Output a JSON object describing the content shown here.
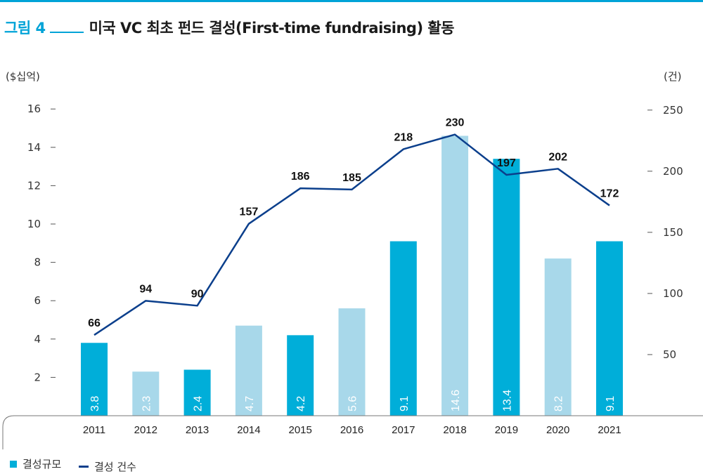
{
  "figure": {
    "number": "그림 4",
    "title": "미국 VC 최초 펀드 결성(First-time fundraising) 활동"
  },
  "legend": {
    "bar_label": "결성규모",
    "line_label": "결성 건수"
  },
  "colors": {
    "accent": "#00a3d7",
    "bar_dark": "#00aed9",
    "bar_light": "#a8d8ea",
    "line": "#0b3f8c"
  },
  "chart_data": {
    "type": "bar+line",
    "categories": [
      "2011",
      "2012",
      "2013",
      "2014",
      "2015",
      "2016",
      "2017",
      "2018",
      "2019",
      "2020",
      "2021"
    ],
    "series": [
      {
        "name": "결성규모",
        "type": "bar",
        "axis": "left",
        "values": [
          3.8,
          2.3,
          2.4,
          4.7,
          4.2,
          5.6,
          9.1,
          14.6,
          13.4,
          8.2,
          9.1
        ],
        "value_labels": [
          "3.8",
          "2.3",
          "2.4",
          "4.7",
          "4.2",
          "5.6",
          "9.1",
          "14.6",
          "13.4",
          "8.2",
          "9.1"
        ],
        "shade": [
          "dark",
          "light",
          "dark",
          "light",
          "dark",
          "light",
          "dark",
          "light",
          "dark",
          "light",
          "dark"
        ]
      },
      {
        "name": "결성 건수",
        "type": "line",
        "axis": "right",
        "values": [
          66,
          94,
          90,
          157,
          186,
          185,
          218,
          230,
          197,
          202,
          172
        ],
        "value_labels": [
          "66",
          "94",
          "90",
          "157",
          "186",
          "185",
          "218",
          "230",
          "197",
          "202",
          "172"
        ]
      }
    ],
    "y_left": {
      "unit": "($십억)",
      "ticks": [
        2,
        4,
        6,
        8,
        10,
        12,
        14,
        16
      ],
      "tick_labels": [
        "2",
        "4",
        "6",
        "8",
        "10",
        "12",
        "14",
        "16"
      ],
      "range": [
        0,
        16
      ]
    },
    "y_right": {
      "unit": "(건)",
      "ticks": [
        50,
        100,
        150,
        200,
        250
      ],
      "tick_labels": [
        "50",
        "100",
        "150",
        "200",
        "250"
      ],
      "range": [
        0,
        250
      ]
    },
    "legend_position": "bottom-left"
  }
}
